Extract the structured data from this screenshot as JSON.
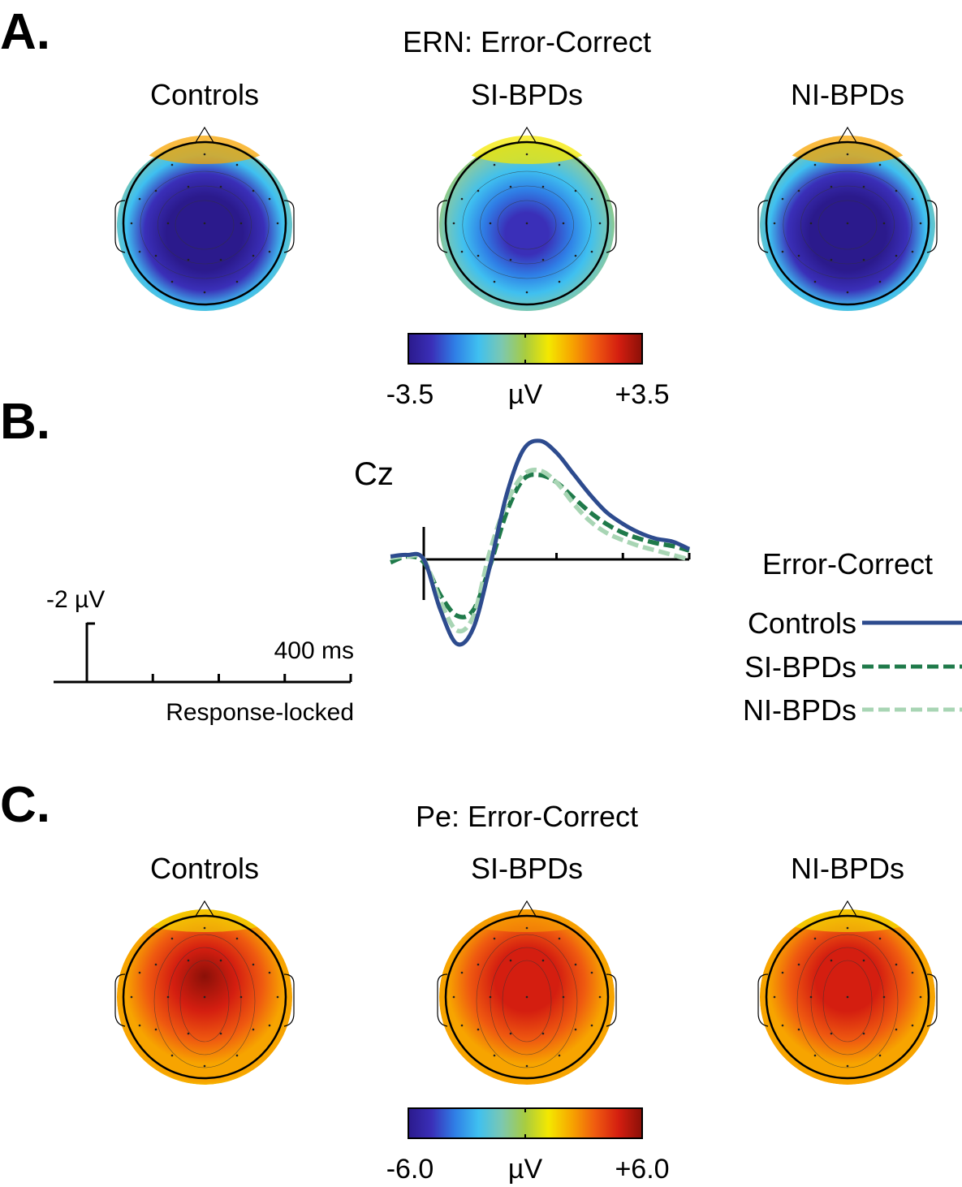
{
  "panels": {
    "a": {
      "letter": "A.",
      "title": "ERN: Error-Correct",
      "groups": [
        "Controls",
        "SI-BPDs",
        "NI-BPDs"
      ]
    },
    "b": {
      "letter": "B."
    },
    "c": {
      "letter": "C.",
      "title": "Pe: Error-Correct",
      "groups": [
        "Controls",
        "SI-BPDs",
        "NI-BPDs"
      ]
    }
  },
  "colorbar_ern": {
    "min_label": "-3.5",
    "unit": "µV",
    "max_label": "+3.5",
    "min": -3.5,
    "max": 3.5
  },
  "colorbar_pe": {
    "min_label": "-6.0",
    "unit": "µV",
    "max_label": "+6.0",
    "min": -6.0,
    "max": 6.0
  },
  "colormap": [
    "#2b1a8c",
    "#3a2fb8",
    "#2f7fe6",
    "#3fc0f0",
    "#7cc8b0",
    "#a8cc40",
    "#f4e800",
    "#f7a400",
    "#ef5a10",
    "#d41e10",
    "#8a1008"
  ],
  "topomaps": {
    "ern": [
      {
        "group": "Controls",
        "center_value": -3.5,
        "peak_spread": "broad",
        "frontal_value": 0.3
      },
      {
        "group": "SI-BPDs",
        "center_value": -2.8,
        "peak_spread": "narrow",
        "frontal_value": 0.0
      },
      {
        "group": "NI-BPDs",
        "center_value": -3.5,
        "peak_spread": "broad",
        "frontal_value": 0.4
      }
    ],
    "pe": [
      {
        "group": "Controls",
        "center_value": 5.5,
        "edge_value": 1.6
      },
      {
        "group": "SI-BPDs",
        "center_value": 4.4,
        "edge_value": 2.2
      },
      {
        "group": "NI-BPDs",
        "center_value": 4.6,
        "edge_value": 1.8
      }
    ]
  },
  "scale_bar": {
    "amplitude_label": "-2 µV",
    "time_label": "400 ms",
    "axis_label": "Response-locked",
    "ticks_ms": [
      -100,
      0,
      100,
      200,
      300,
      400
    ]
  },
  "chart_data": {
    "type": "line",
    "title": "Cz",
    "legend_title": "Error-Correct",
    "xlabel": "Response-locked",
    "x_unit": "ms",
    "y_unit": "µV",
    "y_polarity": "negative-up",
    "xlim": [
      -50,
      400
    ],
    "ylim": [
      -3.0,
      4.5
    ],
    "x": [
      -50,
      -25,
      0,
      25,
      50,
      75,
      100,
      125,
      150,
      175,
      200,
      225,
      250,
      275,
      300,
      325,
      350,
      375,
      400
    ],
    "series": [
      {
        "name": "Controls",
        "color": "#2d4b8e",
        "dash": "solid",
        "values": [
          0.1,
          0.15,
          0.0,
          -1.7,
          -2.85,
          -2.3,
          -0.2,
          2.2,
          3.7,
          4.0,
          3.6,
          2.9,
          2.2,
          1.6,
          1.2,
          0.9,
          0.7,
          0.6,
          0.35
        ]
      },
      {
        "name": "SI-BPDs",
        "color": "#1f7a4a",
        "dash": "dashed",
        "values": [
          -0.1,
          0.1,
          -0.1,
          -1.2,
          -1.9,
          -1.7,
          -0.2,
          1.6,
          2.7,
          2.85,
          2.6,
          2.1,
          1.6,
          1.2,
          0.9,
          0.7,
          0.55,
          0.45,
          0.3
        ]
      },
      {
        "name": "NI-BPDs",
        "color": "#a8d5b4",
        "dash": "dashed",
        "values": [
          0.05,
          0.1,
          0.0,
          -1.4,
          -2.4,
          -1.9,
          0.3,
          1.9,
          2.85,
          3.0,
          2.6,
          1.9,
          1.3,
          0.9,
          0.65,
          0.45,
          0.3,
          0.15,
          0.0
        ]
      }
    ]
  }
}
